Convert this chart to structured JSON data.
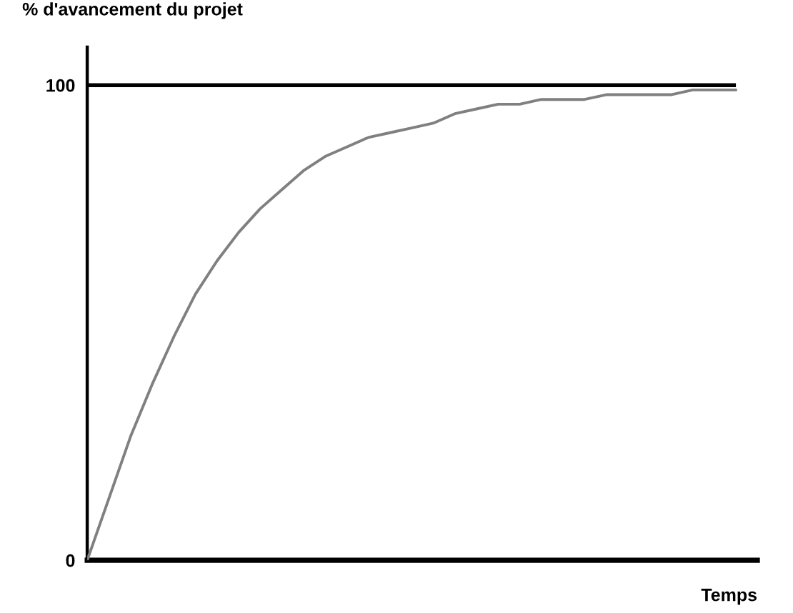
{
  "chart_data": {
    "type": "line",
    "ylabel": "% d'avancement du projet",
    "xlabel": "Temps",
    "categories": [
      null,
      null,
      null,
      null,
      null,
      null,
      null,
      null,
      null,
      null,
      null,
      null,
      null,
      null,
      null,
      null,
      null,
      null,
      null,
      null,
      null,
      null,
      null,
      null,
      null,
      null,
      null,
      null,
      null,
      null,
      null
    ],
    "series": [
      {
        "color": "#808080",
        "values": [
          0,
          13,
          26,
          37,
          47,
          56,
          63,
          69,
          74,
          78,
          82,
          85,
          87,
          89,
          90,
          91,
          92,
          94,
          95,
          96,
          96,
          97,
          97,
          97,
          98,
          98,
          98,
          98,
          99,
          99,
          99
        ]
      }
    ],
    "ylim": [
      0,
      108
    ],
    "yticks": [
      0,
      100
    ],
    "ref_lines": [
      {
        "axis": "y",
        "value": 100,
        "color": "#000000"
      }
    ],
    "marker": "none",
    "line_style": "solid",
    "tick_labels": "y"
  }
}
